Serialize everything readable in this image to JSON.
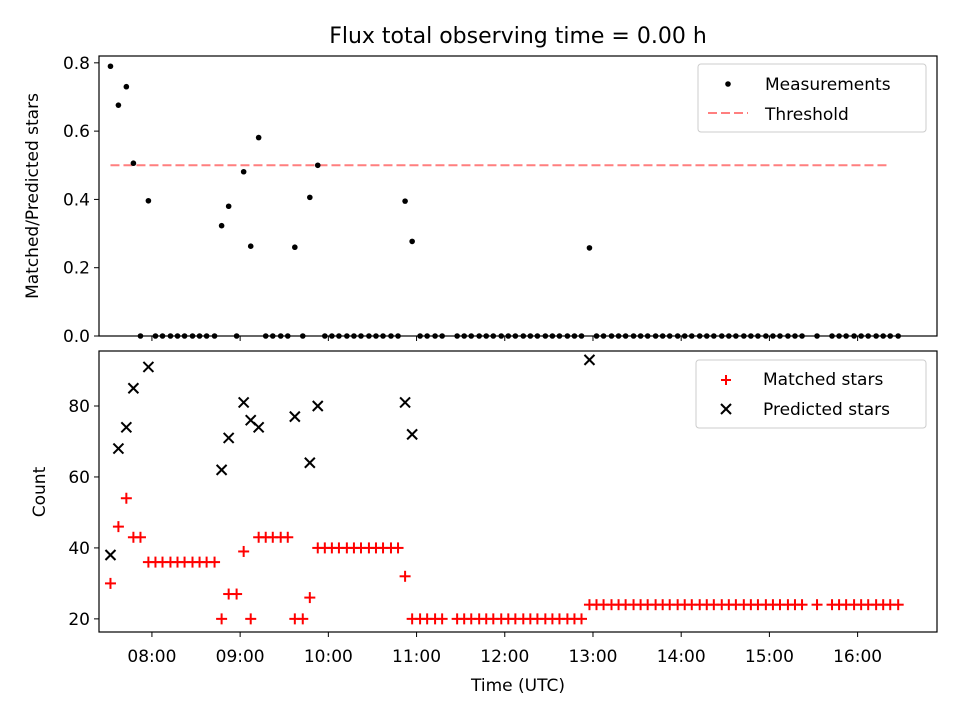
{
  "title": "Flux total observing time = 0.00 h",
  "colors": {
    "measurement": "#000000",
    "threshold": "#ff7f7f",
    "matched": "#ff0000",
    "predicted": "#000000"
  },
  "chart_data": [
    {
      "type": "scatter",
      "panel": "top",
      "ylabel": "Matched/Predicted stars",
      "xlabel": "",
      "xlim": [
        7.4,
        16.9
      ],
      "ylim": [
        0.0,
        0.82
      ],
      "yticks": [
        "0.0",
        "0.2",
        "0.4",
        "0.6",
        "0.8"
      ],
      "legend": {
        "position": "top-right",
        "entries": [
          "Measurements",
          "Threshold"
        ]
      },
      "threshold": {
        "label": "Threshold",
        "value": 0.5,
        "x_range": [
          7.53,
          16.35
        ]
      },
      "series": [
        {
          "name": "Measurements",
          "marker": "dot",
          "x": [
            7.53,
            7.62,
            7.71,
            7.79,
            7.96,
            8.79,
            8.87,
            9.04,
            9.12,
            9.21,
            9.62,
            9.79,
            9.88,
            10.87,
            10.95,
            12.96,
            7.87,
            8.04,
            8.12,
            8.21,
            8.29,
            8.37,
            8.46,
            8.54,
            8.62,
            8.71,
            8.96,
            9.29,
            9.37,
            9.46,
            9.54,
            9.71,
            9.96,
            10.04,
            10.12,
            10.21,
            10.29,
            10.37,
            10.46,
            10.54,
            10.62,
            10.71,
            10.79,
            11.04,
            11.12,
            11.21,
            11.29,
            11.46,
            11.54,
            11.62,
            11.71,
            11.79,
            11.87,
            11.96,
            12.04,
            12.12,
            12.21,
            12.29,
            12.37,
            12.46,
            12.54,
            12.62,
            12.71,
            12.79,
            12.87,
            13.04,
            13.12,
            13.21,
            13.29,
            13.37,
            13.46,
            13.54,
            13.62,
            13.71,
            13.79,
            13.87,
            13.96,
            14.04,
            14.12,
            14.21,
            14.29,
            14.37,
            14.46,
            14.54,
            14.62,
            14.71,
            14.79,
            14.87,
            14.96,
            15.04,
            15.12,
            15.21,
            15.29,
            15.37,
            15.54,
            15.71,
            15.79,
            15.87,
            15.96,
            16.04,
            16.12,
            16.21,
            16.29,
            16.37,
            16.46
          ],
          "y": [
            0.79,
            0.676,
            0.73,
            0.506,
            0.396,
            0.323,
            0.38,
            0.481,
            0.263,
            0.581,
            0.26,
            0.406,
            0.5,
            0.395,
            0.277,
            0.258,
            0,
            0,
            0,
            0,
            0,
            0,
            0,
            0,
            0,
            0,
            0,
            0,
            0,
            0,
            0,
            0,
            0,
            0,
            0,
            0,
            0,
            0,
            0,
            0,
            0,
            0,
            0,
            0,
            0,
            0,
            0,
            0,
            0,
            0,
            0,
            0,
            0,
            0,
            0,
            0,
            0,
            0,
            0,
            0,
            0,
            0,
            0,
            0,
            0,
            0,
            0,
            0,
            0,
            0,
            0,
            0,
            0,
            0,
            0,
            0,
            0,
            0,
            0,
            0,
            0,
            0,
            0,
            0,
            0,
            0,
            0,
            0,
            0,
            0,
            0,
            0,
            0,
            0,
            0,
            0,
            0,
            0,
            0,
            0,
            0,
            0,
            0,
            0,
            0
          ]
        }
      ]
    },
    {
      "type": "scatter",
      "panel": "bottom",
      "ylabel": "Count",
      "xlabel": "Time (UTC)",
      "xlim": [
        7.4,
        16.9
      ],
      "ylim": [
        16.3,
        95.5
      ],
      "yticks": [
        "20",
        "40",
        "60",
        "80"
      ],
      "xticks": [
        "08:00",
        "09:00",
        "10:00",
        "11:00",
        "12:00",
        "13:00",
        "14:00",
        "15:00",
        "16:00"
      ],
      "legend": {
        "position": "top-right",
        "entries": [
          "Matched stars",
          "Predicted stars"
        ]
      },
      "series": [
        {
          "name": "Matched stars",
          "marker": "plus",
          "x": [
            7.53,
            7.62,
            7.71,
            7.79,
            7.87,
            7.96,
            8.04,
            8.12,
            8.21,
            8.29,
            8.37,
            8.46,
            8.54,
            8.62,
            8.71,
            8.79,
            8.87,
            8.96,
            9.04,
            9.12,
            9.21,
            9.29,
            9.37,
            9.46,
            9.54,
            9.62,
            9.71,
            9.79,
            9.88,
            9.96,
            10.04,
            10.12,
            10.21,
            10.29,
            10.37,
            10.46,
            10.54,
            10.62,
            10.71,
            10.79,
            10.87,
            10.95,
            11.04,
            11.12,
            11.21,
            11.29,
            11.46,
            11.54,
            11.62,
            11.71,
            11.79,
            11.87,
            11.96,
            12.04,
            12.12,
            12.21,
            12.29,
            12.37,
            12.46,
            12.54,
            12.62,
            12.71,
            12.79,
            12.87,
            12.96,
            13.04,
            13.12,
            13.21,
            13.29,
            13.37,
            13.46,
            13.54,
            13.62,
            13.71,
            13.79,
            13.87,
            13.96,
            14.04,
            14.12,
            14.21,
            14.29,
            14.37,
            14.46,
            14.54,
            14.62,
            14.71,
            14.79,
            14.87,
            14.96,
            15.04,
            15.12,
            15.21,
            15.29,
            15.37,
            15.54,
            15.71,
            15.79,
            15.87,
            15.96,
            16.04,
            16.12,
            16.21,
            16.29,
            16.37,
            16.46
          ],
          "y": [
            30,
            46,
            54,
            43,
            43,
            36,
            36,
            36,
            36,
            36,
            36,
            36,
            36,
            36,
            36,
            20,
            27,
            27,
            39,
            20,
            43,
            43,
            43,
            43,
            43,
            20,
            20,
            26,
            40,
            40,
            40,
            40,
            40,
            40,
            40,
            40,
            40,
            40,
            40,
            40,
            32,
            20,
            20,
            20,
            20,
            20,
            20,
            20,
            20,
            20,
            20,
            20,
            20,
            20,
            20,
            20,
            20,
            20,
            20,
            20,
            20,
            20,
            20,
            20,
            24,
            24,
            24,
            24,
            24,
            24,
            24,
            24,
            24,
            24,
            24,
            24,
            24,
            24,
            24,
            24,
            24,
            24,
            24,
            24,
            24,
            24,
            24,
            24,
            24,
            24,
            24,
            24,
            24,
            24,
            24,
            24,
            24,
            24,
            24,
            24,
            24,
            24,
            24,
            24,
            24
          ]
        },
        {
          "name": "Predicted stars",
          "marker": "x",
          "x": [
            7.53,
            7.62,
            7.71,
            7.79,
            7.96,
            8.79,
            8.87,
            9.04,
            9.12,
            9.21,
            9.62,
            9.79,
            9.88,
            10.87,
            10.95,
            12.96
          ],
          "y": [
            38,
            68,
            74,
            85,
            91,
            62,
            71,
            81,
            76,
            74,
            77,
            64,
            80,
            81,
            72,
            93
          ]
        }
      ]
    }
  ]
}
